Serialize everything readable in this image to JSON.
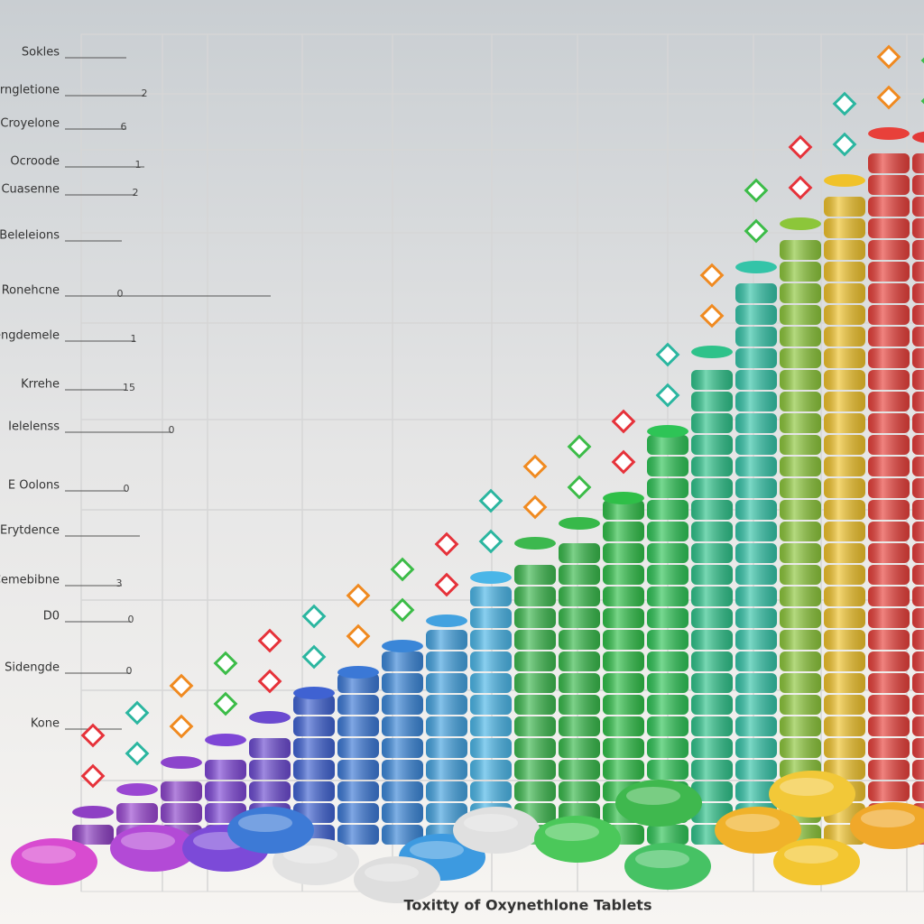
{
  "caption": "Toxitty of Oxynethlone Tablets",
  "labels": [
    {
      "text": "Sokles"
    },
    {
      "text": "Sorngletione",
      "note": "2"
    },
    {
      "text": "Croyelone",
      "note": "6"
    },
    {
      "text": "Ocroode",
      "note": "1"
    },
    {
      "text": "Cuasenne",
      "note": "2"
    },
    {
      "text": "Alsidesing Beleleions"
    },
    {
      "text": "Ronehcne",
      "note": "0"
    },
    {
      "text": "Bengdemele",
      "note": "1"
    },
    {
      "text": "Krrehe",
      "note": "15"
    },
    {
      "text": "Ielelenss",
      "note": "0"
    },
    {
      "text": "E Oolons",
      "note": "0"
    },
    {
      "text": "Sustshblis Erytdence"
    },
    {
      "text": "Cemebibne",
      "note": "3"
    },
    {
      "text": "D0",
      "note": "0"
    },
    {
      "text": "Sidengde",
      "note": "0"
    },
    {
      "text": "Kone"
    }
  ]
}
